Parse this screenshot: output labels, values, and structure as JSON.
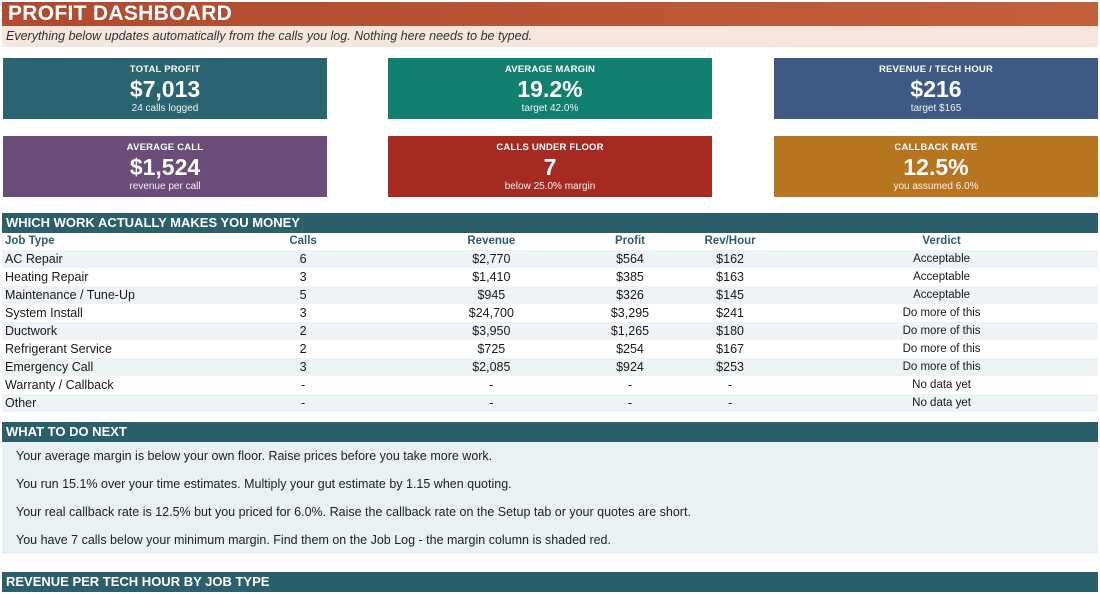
{
  "header": {
    "title": "PROFIT DASHBOARD",
    "subtitle": "Everything below updates automatically from the calls you log. Nothing here needs to be typed."
  },
  "kpis": [
    {
      "label": "TOTAL PROFIT",
      "value": "$7,013",
      "sub": "24 calls logged",
      "color": "#2a6470"
    },
    {
      "label": "AVERAGE MARGIN",
      "value": "19.2%",
      "sub": "target 42.0%",
      "color": "#12806f"
    },
    {
      "label": "REVENUE / TECH HOUR",
      "value": "$216",
      "sub": "target $165",
      "color": "#3c5a82"
    },
    {
      "label": "AVERAGE CALL",
      "value": "$1,524",
      "sub": "revenue per call",
      "color": "#6a4d78"
    },
    {
      "label": "CALLS UNDER FLOOR",
      "value": "7",
      "sub": "below 25.0% margin",
      "color": "#a52a22"
    },
    {
      "label": "CALLBACK RATE",
      "value": "12.5%",
      "sub": "you assumed 6.0%",
      "color": "#b87520"
    }
  ],
  "work_section": {
    "title": "WHICH WORK ACTUALLY MAKES YOU MONEY",
    "columns": [
      "Job Type",
      "Calls",
      "Revenue",
      "Profit",
      "Rev/Hour",
      "Verdict"
    ],
    "rows": [
      [
        "AC Repair",
        "6",
        "$2,770",
        "$564",
        "$162",
        "Acceptable"
      ],
      [
        "Heating Repair",
        "3",
        "$1,410",
        "$385",
        "$163",
        "Acceptable"
      ],
      [
        "Maintenance / Tune-Up",
        "5",
        "$945",
        "$326",
        "$145",
        "Acceptable"
      ],
      [
        "System Install",
        "3",
        "$24,700",
        "$3,295",
        "$241",
        "Do more of this"
      ],
      [
        "Ductwork",
        "2",
        "$3,950",
        "$1,265",
        "$180",
        "Do more of this"
      ],
      [
        "Refrigerant Service",
        "2",
        "$725",
        "$254",
        "$167",
        "Do more of this"
      ],
      [
        "Emergency Call",
        "3",
        "$2,085",
        "$924",
        "$253",
        "Do more of this"
      ],
      [
        "Warranty / Callback",
        "-",
        "-",
        "-",
        "-",
        "No data yet"
      ],
      [
        "Other",
        "-",
        "-",
        "-",
        "-",
        "No data yet"
      ]
    ]
  },
  "todo_section": {
    "title": "WHAT TO DO NEXT",
    "items": [
      "Your average margin is below your own floor. Raise prices before you take more work.",
      "You run 15.1% over your time estimates. Multiply your gut estimate by 1.15 when quoting.",
      "Your real callback rate is 12.5% but you priced for 6.0%. Raise the callback rate on the Setup tab or your quotes are short.",
      "You have 7 calls below your minimum margin. Find them on the Job Log - the margin column is shaded red."
    ]
  },
  "revenue_section": {
    "title": "REVENUE PER TECH HOUR BY JOB TYPE"
  }
}
